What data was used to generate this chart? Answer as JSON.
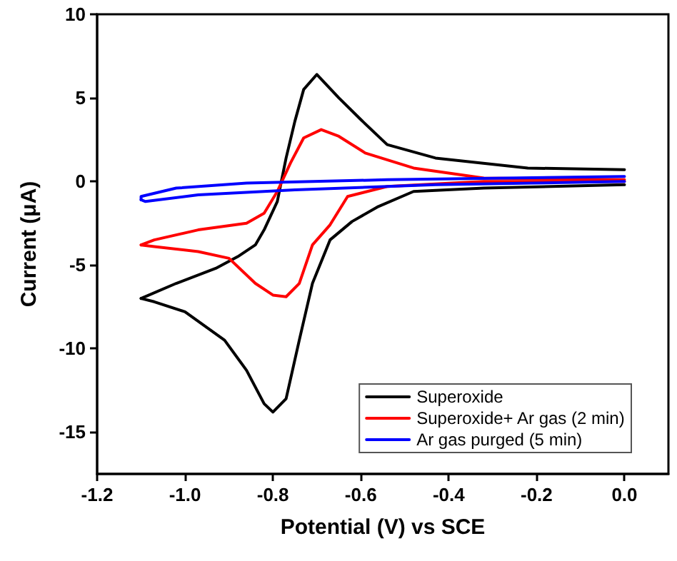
{
  "chart_data": {
    "type": "line",
    "xlabel": "Potential (V) vs SCE",
    "ylabel": "Current (μA)",
    "xlim": [
      -1.2,
      0.1
    ],
    "xticks": [
      {
        "value": -1.2,
        "label": "-1.2"
      },
      {
        "value": -1,
        "label": "-1.0"
      },
      {
        "value": -0.8,
        "label": "-0.8"
      },
      {
        "value": -0.6,
        "label": "-0.6"
      },
      {
        "value": -0.4,
        "label": "-0.4"
      },
      {
        "value": -0.2,
        "label": "-0.2"
      },
      {
        "value": 0,
        "label": "0.0"
      }
    ],
    "ylim": [
      -17.5,
      10
    ],
    "yticks": [
      -15,
      -10,
      -5,
      0,
      5,
      10
    ],
    "grid": false,
    "legend": "bottom right",
    "marker": "none",
    "line_style": "solid",
    "series": [
      {
        "name": "Superoxide",
        "color": "#000000",
        "x": [
          0,
          -0.32,
          -0.48,
          -0.56,
          -0.62,
          -0.67,
          -0.71,
          -0.74,
          -0.77,
          -0.8,
          -0.82,
          -0.86,
          -0.91,
          -1.0,
          -1.07,
          -1.1
        ],
        "values": [
          -0.2,
          -0.4,
          -0.6,
          -1.5,
          -2.4,
          -3.5,
          -6.1,
          -9.5,
          -13,
          -13.8,
          -13.3,
          -11.3,
          -9.5,
          -7.8,
          -7.2,
          -7
        ]
      },
      {
        "color": "#000000",
        "x": [
          -1.1,
          -1.02,
          -0.93,
          -0.88,
          -0.84,
          -0.82,
          -0.79,
          -0.77,
          -0.75,
          -0.73,
          -0.7,
          -0.65,
          -0.6,
          -0.54,
          -0.43,
          -0.22,
          0
        ],
        "values": [
          -7,
          -6.1,
          -5.2,
          -4.5,
          -3.8,
          -2.9,
          -1.2,
          1.4,
          3.6,
          5.5,
          6.4,
          5,
          3.7,
          2.2,
          1.4,
          0.8,
          0.7
        ]
      },
      {
        "name": "Superoxide+ Ar gas (2 min)",
        "color": "#ff0000",
        "x": [
          0,
          -0.32,
          -0.54,
          -0.63,
          -0.67,
          -0.71,
          -0.74,
          -0.77,
          -0.8,
          -0.84,
          -0.9,
          -0.97,
          -1.07,
          -1.1
        ],
        "values": [
          0,
          0,
          -0.3,
          -0.9,
          -2.6,
          -3.8,
          -6.1,
          -6.9,
          -6.8,
          -6.1,
          -4.6,
          -4.2,
          -3.9,
          -3.8
        ]
      },
      {
        "color": "#ff0000",
        "x": [
          -1.1,
          -1.07,
          -0.97,
          -0.86,
          -0.82,
          -0.79,
          -0.76,
          -0.73,
          -0.69,
          -0.65,
          -0.59,
          -0.48,
          -0.32,
          0
        ],
        "values": [
          -3.8,
          -3.5,
          -2.9,
          -2.5,
          -1.9,
          -0.6,
          1.1,
          2.6,
          3.1,
          2.7,
          1.7,
          0.8,
          0.2,
          0.1
        ]
      },
      {
        "name": "Ar gas purged (5 min)",
        "color": "#0000ff",
        "x": [
          0,
          -0.43,
          -0.75,
          -0.97,
          -1.09,
          -1.1
        ],
        "values": [
          0,
          -0.2,
          -0.5,
          -0.8,
          -1.2,
          -1.1
        ]
      },
      {
        "color": "#0000ff",
        "x": [
          -1.1,
          -1.1,
          -1.02,
          -0.86,
          -0.54,
          0
        ],
        "values": [
          -1.1,
          -0.9,
          -0.4,
          -0.1,
          0.1,
          0.3
        ]
      }
    ]
  }
}
